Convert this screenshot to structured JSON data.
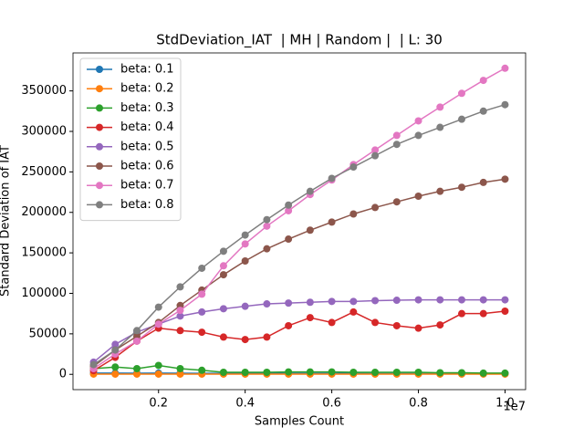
{
  "chart_data": {
    "type": "line",
    "title": "StdDeviation_IAT  | MH | Random |  | L: 30",
    "x_label": "Samples Count",
    "y_label": "Standard Deviation of IAT",
    "x_offset_label": "1e7",
    "x": [
      500000,
      1000000,
      1500000,
      2000000,
      2500000,
      3000000,
      3500000,
      4000000,
      4500000,
      5000000,
      5500000,
      6000000,
      6500000,
      7000000,
      7500000,
      8000000,
      8500000,
      9000000,
      9500000,
      10000000
    ],
    "xlim": [
      25000,
      10475000
    ],
    "xticks": [
      {
        "value": 2000000,
        "label": "0.2"
      },
      {
        "value": 4000000,
        "label": "0.4"
      },
      {
        "value": 6000000,
        "label": "0.6"
      },
      {
        "value": 8000000,
        "label": "0.8"
      },
      {
        "value": 10000000,
        "label": "1.0"
      }
    ],
    "ylim": [
      -18900,
      396900
    ],
    "yticks": [
      0,
      50000,
      100000,
      150000,
      200000,
      250000,
      300000,
      350000
    ],
    "legend": "upper left",
    "series": [
      {
        "name": "beta: 0.1",
        "color": "#1f77b4",
        "values": [
          1500,
          1500,
          1400,
          1500,
          1400,
          1300,
          1300,
          1200,
          1200,
          1200,
          1100,
          1100,
          1100,
          1000,
          1000,
          1000,
          1000,
          1000,
          1000,
          1000
        ]
      },
      {
        "name": "beta: 0.2",
        "color": "#ff7f0e",
        "values": [
          300,
          300,
          300,
          300,
          300,
          300,
          300,
          300,
          300,
          300,
          300,
          300,
          300,
          300,
          300,
          300,
          300,
          300,
          300,
          300
        ]
      },
      {
        "name": "beta: 0.3",
        "color": "#2ca02c",
        "values": [
          7000,
          9000,
          7000,
          11000,
          7000,
          5000,
          2500,
          2500,
          2500,
          3000,
          3000,
          3000,
          2500,
          2500,
          2500,
          2500,
          2000,
          2000,
          1500,
          1500
        ]
      },
      {
        "name": "beta: 0.4",
        "color": "#d62728",
        "values": [
          4500,
          21000,
          41000,
          57000,
          54000,
          52000,
          46000,
          43000,
          46000,
          60000,
          70000,
          64000,
          77000,
          64000,
          60000,
          57000,
          61000,
          75000,
          75000,
          78000
        ]
      },
      {
        "name": "beta: 0.5",
        "color": "#9467bd",
        "values": [
          15000,
          37000,
          52000,
          62000,
          72000,
          77000,
          81000,
          84000,
          87000,
          88000,
          89000,
          90000,
          90000,
          91000,
          91500,
          92000,
          92000,
          92000,
          92000,
          92000
        ]
      },
      {
        "name": "beta: 0.6",
        "color": "#8c564b",
        "values": [
          10000,
          30000,
          47000,
          64000,
          85000,
          104000,
          123000,
          140000,
          155000,
          167000,
          178000,
          188000,
          198000,
          206000,
          213000,
          220000,
          226000,
          231000,
          237000,
          241000
        ]
      },
      {
        "name": "beta: 0.7",
        "color": "#e377c2",
        "values": [
          7000,
          25000,
          41000,
          62000,
          79000,
          99000,
          134000,
          161000,
          183000,
          202000,
          222000,
          240000,
          259000,
          277000,
          295000,
          313000,
          330000,
          347000,
          363000,
          378000
        ]
      },
      {
        "name": "beta: 0.8",
        "color": "#7f7f7f",
        "values": [
          12000,
          30000,
          54000,
          83000,
          108000,
          131000,
          152000,
          172000,
          191000,
          209000,
          226000,
          242000,
          256000,
          270000,
          284000,
          295000,
          305000,
          315000,
          325000,
          333000
        ]
      }
    ]
  }
}
